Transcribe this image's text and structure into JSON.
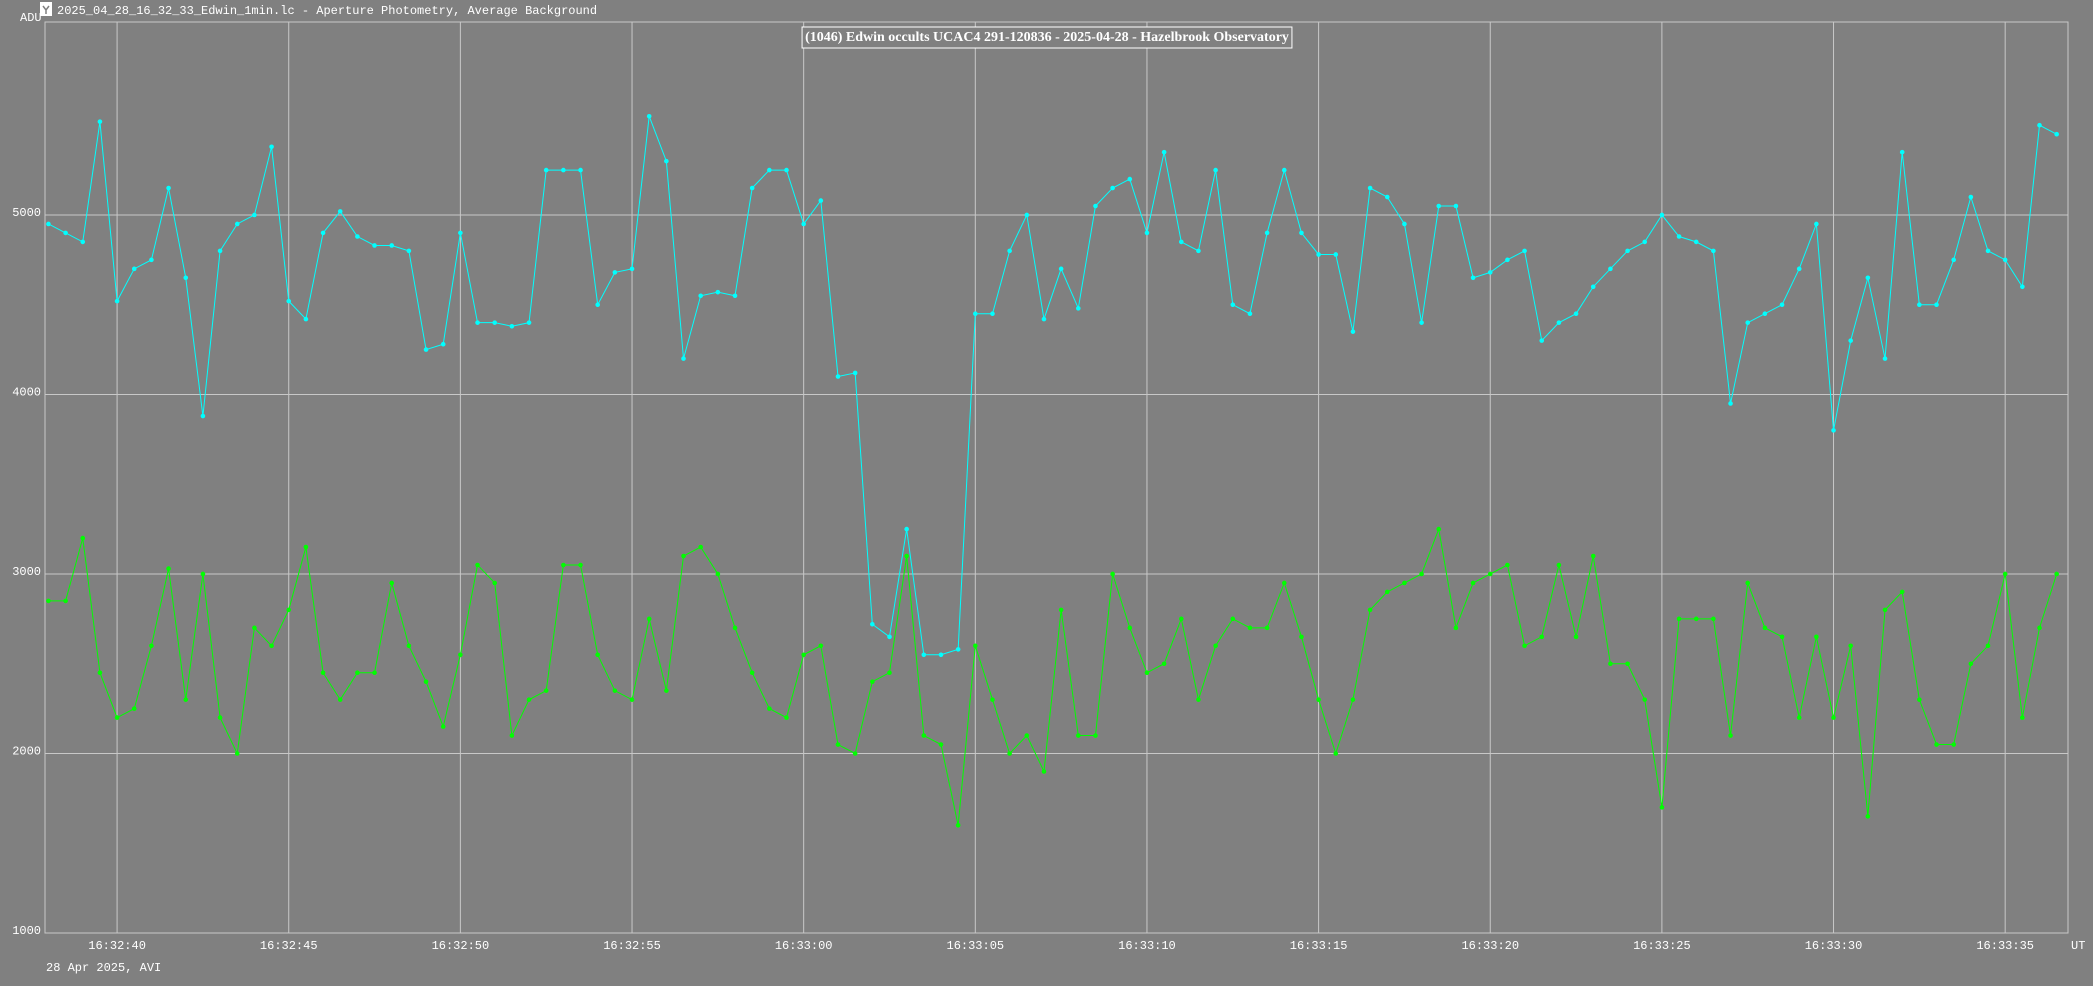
{
  "window_title": "2025_04_28_16_32_33_Edwin_1min.lc - Aperture Photometry, Average Background",
  "chart_data": {
    "type": "line",
    "title": "(1046) Edwin occults UCAC4 291-120836 - 2025-04-28 - Hazelbrook Observatory",
    "y_label": "ADU",
    "x_label": "UT",
    "footer": "28 Apr 2025, AVI",
    "grid": true,
    "xlim": [
      37.9,
      96.83
    ],
    "ylim": [
      1000,
      6075
    ],
    "yticks": [
      1000,
      2000,
      3000,
      4000,
      5000
    ],
    "xticks": [
      {
        "value": 40,
        "label": "16:32:40"
      },
      {
        "value": 45,
        "label": "16:32:45"
      },
      {
        "value": 50,
        "label": "16:32:50"
      },
      {
        "value": 55,
        "label": "16:32:55"
      },
      {
        "value": 60,
        "label": "16:33:00"
      },
      {
        "value": 65,
        "label": "16:33:05"
      },
      {
        "value": 70,
        "label": "16:33:10"
      },
      {
        "value": 75,
        "label": "16:33:15"
      },
      {
        "value": 80,
        "label": "16:33:20"
      },
      {
        "value": 85,
        "label": "16:33:25"
      },
      {
        "value": 90,
        "label": "16:33:30"
      },
      {
        "value": 95,
        "label": "16:33:35"
      }
    ],
    "x": [
      38.0,
      38.5,
      39.0,
      39.5,
      40.0,
      40.5,
      41.0,
      41.5,
      42.0,
      42.5,
      43.0,
      43.5,
      44.0,
      44.5,
      45.0,
      45.5,
      46.0,
      46.5,
      47.0,
      47.5,
      48.0,
      48.5,
      49.0,
      49.5,
      50.0,
      50.5,
      51.0,
      51.5,
      52.0,
      52.5,
      53.0,
      53.5,
      54.0,
      54.5,
      55.0,
      55.5,
      56.0,
      56.5,
      57.0,
      57.5,
      58.0,
      58.5,
      59.0,
      59.5,
      60.0,
      60.5,
      61.0,
      61.5,
      62.0,
      62.5,
      63.0,
      63.5,
      64.0,
      64.5,
      65.0,
      65.5,
      66.0,
      66.5,
      67.0,
      67.5,
      68.0,
      68.5,
      69.0,
      69.5,
      70.0,
      70.5,
      71.0,
      71.5,
      72.0,
      72.5,
      73.0,
      73.5,
      74.0,
      74.5,
      75.0,
      75.5,
      76.0,
      76.5,
      77.0,
      77.5,
      78.0,
      78.5,
      79.0,
      79.5,
      80.0,
      80.5,
      81.0,
      81.5,
      82.0,
      82.5,
      83.0,
      83.5,
      84.0,
      84.5,
      85.0,
      85.5,
      86.0,
      86.5,
      87.0,
      87.5,
      88.0,
      88.5,
      89.0,
      89.5,
      90.0,
      90.5,
      91.0,
      91.5,
      92.0,
      92.5,
      93.0,
      93.5,
      94.0,
      94.5,
      95.0,
      95.5,
      96.0,
      96.5
    ],
    "series": [
      {
        "color": "#00ffff",
        "values": [
          4950,
          4900,
          4850,
          5520,
          4520,
          4700,
          4750,
          5150,
          4650,
          3880,
          4800,
          4950,
          5000,
          5380,
          4520,
          4420,
          4900,
          5020,
          4880,
          4830,
          4830,
          4800,
          4250,
          4280,
          4900,
          4400,
          4400,
          4380,
          4400,
          5250,
          5250,
          5250,
          4500,
          4680,
          4700,
          5550,
          5300,
          4200,
          4550,
          4570,
          4550,
          5150,
          5250,
          5250,
          4950,
          5080,
          4100,
          4120,
          2720,
          2650,
          3250,
          2550,
          2550,
          2580,
          4450,
          4450,
          4800,
          5000,
          4420,
          4700,
          4480,
          5050,
          5150,
          5200,
          4900,
          5350,
          4850,
          4800,
          5250,
          4500,
          4450,
          4900,
          5250,
          4900,
          4780,
          4780,
          4350,
          5150,
          5100,
          4950,
          4400,
          5050,
          5050,
          4650,
          4680,
          4750,
          4800,
          4300,
          4400,
          4450,
          4600,
          4700,
          4800,
          4850,
          5000,
          4880,
          4850,
          4800,
          3950,
          4400,
          4450,
          4500,
          4700,
          4950,
          3800,
          4300,
          4650,
          4200,
          5350,
          4500,
          4500,
          4750,
          5100,
          4800,
          4750,
          4600,
          5500,
          5450
        ]
      },
      {
        "color": "#00ff00",
        "values": [
          2850,
          2850,
          3200,
          2450,
          2200,
          2250,
          2600,
          3030,
          2300,
          3000,
          2200,
          2000,
          2700,
          2600,
          2800,
          3150,
          2450,
          2300,
          2450,
          2450,
          2950,
          2600,
          2400,
          2150,
          2550,
          3050,
          2950,
          2100,
          2300,
          2350,
          3050,
          3050,
          2550,
          2350,
          2300,
          2750,
          2350,
          3100,
          3150,
          3000,
          2700,
          2450,
          2250,
          2200,
          2550,
          2600,
          2050,
          2000,
          2400,
          2450,
          3100,
          2100,
          2050,
          1600,
          2600,
          2300,
          2000,
          2100,
          1900,
          2800,
          2100,
          2100,
          3000,
          2700,
          2450,
          2500,
          2750,
          2300,
          2600,
          2750,
          2700,
          2700,
          2950,
          2650,
          2300,
          2000,
          2300,
          2800,
          2900,
          2950,
          3000,
          3250,
          2700,
          2950,
          3000,
          3050,
          2600,
          2650,
          3050,
          2650,
          3100,
          2500,
          2500,
          2300,
          1700,
          2750,
          2750,
          2750,
          2100,
          2950,
          2700,
          2650,
          2200,
          2650,
          2200,
          2600,
          1650,
          2800,
          2900,
          2300,
          2050,
          2050,
          2500,
          2600,
          3000,
          2200,
          2700,
          3000
        ]
      }
    ]
  }
}
